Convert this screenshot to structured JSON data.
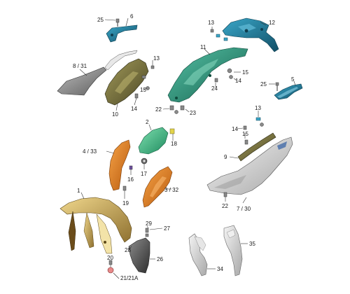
{
  "callouts": {
    "c1": "1",
    "c2": "2",
    "c3": "3 / 32",
    "c4": "4 / 33",
    "c5": "5",
    "c6": "6",
    "c7": "7 / 30",
    "c8": "8 / 31",
    "c9": "9",
    "c10": "10",
    "c11": "11",
    "c12": "12",
    "c13a": "13",
    "c13b": "13",
    "c13c": "13",
    "c14a": "14",
    "c14b": "14",
    "c14c": "14",
    "c15a": "15",
    "c15b": "15",
    "c15c": "15",
    "c16": "16",
    "c17": "17",
    "c18": "18",
    "c19": "19",
    "c20": "20",
    "c21": "21/21A",
    "c22a": "22",
    "c22b": "22",
    "c23": "23",
    "c24": "24",
    "c25a": "25",
    "c25b": "25",
    "c26": "26",
    "c27": "27",
    "c28": "28",
    "c29": "29",
    "c34": "34",
    "c35": "35"
  },
  "colors": {
    "blue_parts": "#1b6f8c",
    "teal_parts": "#1f8a78",
    "olive_parts": "#6f6a3a",
    "orange_parts": "#e07a1a",
    "green_parts": "#2fae7a",
    "gold_parts": "#c9a84c",
    "grey_parts": "#9a9a9a",
    "silver_parts": "#d8d8d8"
  }
}
